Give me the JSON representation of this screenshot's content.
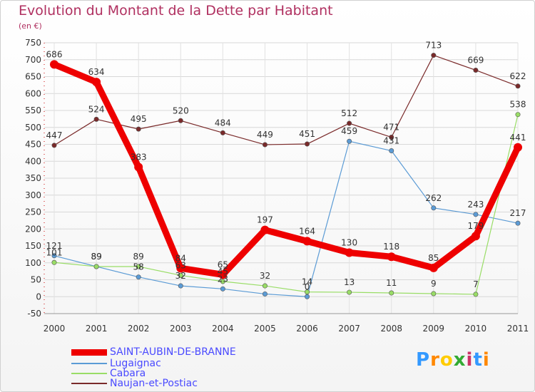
{
  "title": "Evolution du Montant de la Dette par Habitant",
  "unit": "(en €)",
  "logo": "Proxiti",
  "chart_data": {
    "type": "line",
    "title": "Evolution du Montant de la Dette par Habitant",
    "ylabel": "(en €)",
    "xlabel": "",
    "ylim": [
      -50,
      750
    ],
    "yticks": [
      -50,
      0,
      50,
      100,
      150,
      200,
      250,
      300,
      350,
      400,
      450,
      500,
      550,
      600,
      650,
      700,
      750
    ],
    "categories": [
      "2000",
      "2001",
      "2002",
      "2003",
      "2004",
      "2005",
      "2006",
      "2007",
      "2008",
      "2009",
      "2010",
      "2011"
    ],
    "grid": true,
    "legend": "bottom-left",
    "series": [
      {
        "name": "SAINT-AUBIN-DE-BRANNE",
        "color": "#ee0000",
        "values": [
          686,
          634,
          383,
          84,
          65,
          197,
          164,
          130,
          118,
          85,
          179,
          441
        ]
      },
      {
        "name": "Lugaignac",
        "color": "#5b9bd5",
        "values": [
          121,
          89,
          58,
          32,
          23,
          8,
          0,
          459,
          431,
          262,
          243,
          217
        ]
      },
      {
        "name": "Cabara",
        "color": "#99dd66",
        "values": [
          101,
          89,
          89,
          63,
          45,
          32,
          14,
          13,
          11,
          9,
          7,
          538
        ]
      },
      {
        "name": "Naujan-et-Postiac",
        "color": "#7a2a2a",
        "values": [
          447,
          524,
          495,
          520,
          484,
          449,
          451,
          512,
          471,
          713,
          669,
          622
        ]
      }
    ],
    "data_labels": [
      [
        "686",
        "634",
        "383",
        "84",
        "65",
        "197",
        "164",
        "130",
        "118",
        "85",
        "179",
        "441"
      ],
      [
        "121",
        "89",
        "58",
        "32",
        "23",
        "",
        "0",
        "459",
        "431",
        "262",
        "243",
        "217"
      ],
      [
        "101",
        "89",
        "89",
        "63",
        "45",
        "32",
        "14",
        "13",
        "11",
        "9",
        "7",
        "538"
      ],
      [
        "447",
        "524",
        "495",
        "520",
        "484",
        "449",
        "451",
        "512",
        "471",
        "713",
        "669",
        "622"
      ]
    ]
  }
}
